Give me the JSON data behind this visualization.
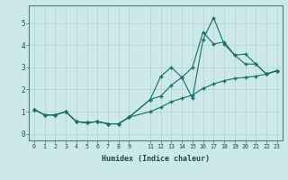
{
  "xlabel": "Humidex (Indice chaleur)",
  "bg_color": "#cce8e8",
  "grid_color_major": "#b8d4d4",
  "grid_color_minor": "#d4e8e8",
  "line_color": "#1a6b6b",
  "xlim": [
    -0.5,
    23.5
  ],
  "ylim": [
    -0.3,
    5.8
  ],
  "xticks": [
    0,
    1,
    2,
    3,
    4,
    5,
    6,
    7,
    8,
    9,
    11,
    12,
    13,
    14,
    15,
    16,
    17,
    18,
    19,
    20,
    21,
    22,
    23
  ],
  "yticks": [
    0,
    1,
    2,
    3,
    4,
    5
  ],
  "line1_x": [
    0,
    1,
    2,
    3,
    4,
    5,
    6,
    7,
    8,
    9,
    11,
    12,
    13,
    14,
    15,
    16,
    17,
    18,
    19,
    20,
    21,
    22,
    23
  ],
  "line1_y": [
    1.1,
    0.85,
    0.85,
    1.0,
    0.55,
    0.5,
    0.55,
    0.45,
    0.45,
    0.75,
    1.55,
    2.6,
    3.0,
    2.55,
    1.6,
    4.25,
    5.25,
    4.05,
    3.55,
    3.15,
    3.15,
    2.7,
    2.85
  ],
  "line2_x": [
    0,
    1,
    2,
    3,
    4,
    5,
    6,
    7,
    8,
    9,
    11,
    12,
    13,
    14,
    15,
    16,
    17,
    18,
    19,
    20,
    21,
    22,
    23
  ],
  "line2_y": [
    1.1,
    0.85,
    0.85,
    1.0,
    0.55,
    0.5,
    0.55,
    0.45,
    0.45,
    0.75,
    1.55,
    1.7,
    2.2,
    2.55,
    3.0,
    4.6,
    4.05,
    4.15,
    3.55,
    3.6,
    3.15,
    2.7,
    2.85
  ],
  "line3_x": [
    0,
    1,
    2,
    3,
    4,
    5,
    6,
    7,
    8,
    9,
    11,
    12,
    13,
    14,
    15,
    16,
    17,
    18,
    19,
    20,
    21,
    22,
    23
  ],
  "line3_y": [
    1.1,
    0.85,
    0.85,
    1.0,
    0.55,
    0.5,
    0.55,
    0.45,
    0.45,
    0.75,
    1.0,
    1.2,
    1.45,
    1.6,
    1.75,
    2.05,
    2.25,
    2.4,
    2.5,
    2.55,
    2.6,
    2.7,
    2.85
  ]
}
